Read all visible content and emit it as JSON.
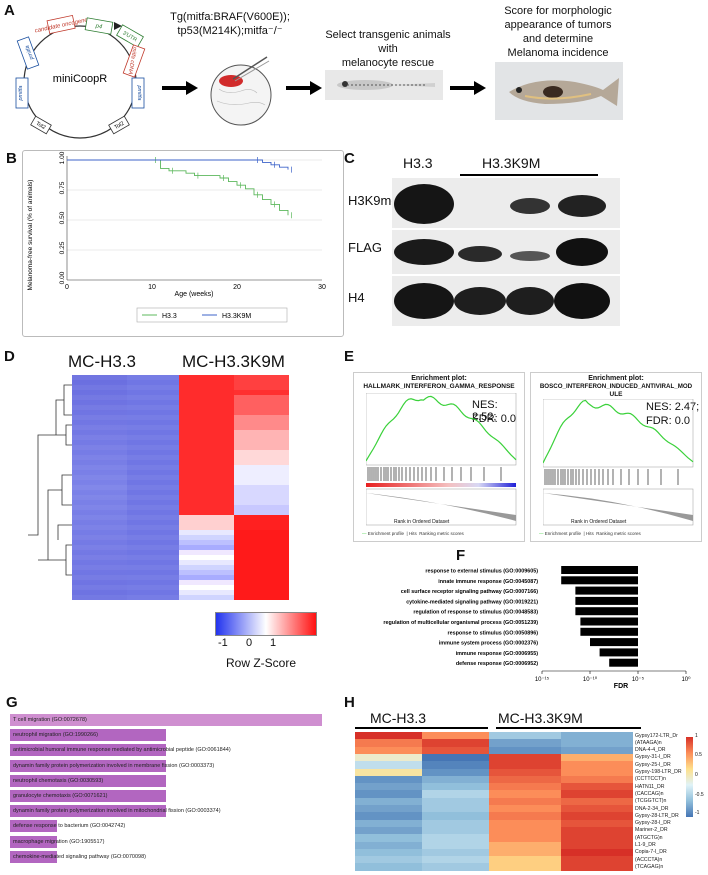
{
  "panels": {
    "A": "A",
    "B": "B",
    "C": "C",
    "D": "D",
    "E": "E",
    "F": "F",
    "G": "G",
    "H": "H"
  },
  "panelA": {
    "plasmid_name": "miniCoopR",
    "plasmid_labels": [
      "p4",
      "3'UTR",
      "pmitfa",
      "mitfa cDNA",
      "candidate oncogene",
      "pmitfa",
      "Tol2",
      "Tol2"
    ],
    "step1": "Tg(mitfa:BRAF(V600E));\ntp53(M214K);mitfa⁻/⁻",
    "step2": "Select transgenic animals with\nmelanocyte rescue",
    "step3": "Score for morphologic\nappearance of tumors\nand determine\nMelanoma incidence"
  },
  "panelB_chart": {
    "ylabel": "Melanoma-free survival (% of animals)",
    "xlabel": "Age (weeks)",
    "yticks": [
      "0.00",
      "0.25",
      "0.50",
      "0.75",
      "1.00"
    ],
    "xticks": [
      "0",
      "10",
      "20",
      "30"
    ],
    "legend": [
      "H3.3",
      "H3.3K9M"
    ]
  },
  "panelC": {
    "top_labels": [
      "H3.3",
      "H3.3K9M"
    ],
    "rows": [
      "H3K9me3",
      "FLAG",
      "H4"
    ]
  },
  "panelD": {
    "col_labels": [
      "MC-H3.3",
      "MC-H3.3K9M"
    ],
    "scale_ticks": [
      "-1",
      "0",
      "1"
    ],
    "scale_title": "Row Z-Score"
  },
  "panelE": {
    "plots": [
      {
        "title1": "Enrichment plot:",
        "title2": "HALLMARK_INTERFERON_GAMMA_RESPONSE",
        "nes": "NES: 2.52;",
        "fdr": "FDR: 0.0"
      },
      {
        "title1": "Enrichment plot:",
        "title2": "BOSCO_INTERFERON_INDUCED_ANTIVIRAL_MOD",
        "title3": "ULE",
        "nes": "NES: 2.47;",
        "fdr": "FDR: 0.0"
      }
    ],
    "xlabel": "Rank in Ordered Dataset",
    "legend": [
      "Enrichment profile",
      "Hits",
      "Ranking metric scores"
    ]
  },
  "chart_data": [
    {
      "type": "line",
      "panel": "B",
      "ylabel": "Melanoma-free survival (% of animals)",
      "xlabel": "Age (weeks)",
      "xlim": [
        0,
        30
      ],
      "ylim": [
        0,
        1
      ],
      "series": [
        {
          "name": "H3.3",
          "color": "#5cb85c",
          "x": [
            0,
            10,
            11,
            12,
            14,
            15,
            17,
            18,
            19,
            20,
            21,
            22,
            23,
            24,
            25,
            26
          ],
          "y": [
            1.0,
            1.0,
            0.93,
            0.91,
            0.89,
            0.87,
            0.87,
            0.85,
            0.82,
            0.79,
            0.76,
            0.71,
            0.67,
            0.63,
            0.58,
            0.54
          ]
        },
        {
          "name": "H3.3K9M",
          "color": "#3d63c9",
          "x": [
            0,
            22,
            23,
            24,
            25,
            26
          ],
          "y": [
            1.0,
            1.0,
            0.98,
            0.96,
            0.94,
            0.92
          ]
        }
      ]
    },
    {
      "type": "bar",
      "panel": "F",
      "xlabel": "FDR",
      "xscale": "log",
      "xticks": [
        "10⁻¹⁵",
        "10⁻¹⁰",
        "10⁻⁵",
        "10⁰"
      ],
      "categories": [
        "response to external stimulus (GO:0009605)",
        "innate immune response (GO:0045087)",
        "cell surface receptor signaling pathway (GO:0007166)",
        "cytokine-mediated signaling pathway (GO:0019221)",
        "regulation of response to stimulus (GO:0048583)",
        "regulation of multicellular organismal process (GO:0051239)",
        "response to stimulus (GO:0050896)",
        "immune system process (GO:0002376)",
        "immune response (GO:0006955)",
        "defense response (GO:0006952)"
      ],
      "values": [
        1e-13,
        1e-13,
        3e-12,
        3e-12,
        3e-12,
        1e-11,
        1e-11,
        1e-10,
        1e-09,
        1e-08
      ]
    },
    {
      "type": "bar",
      "panel": "G",
      "categories": [
        "T cell migration (GO:0072678)",
        "neutrophil migration (GO:1990266)",
        "antimicrobial humoral immune response mediated by antimicrobial peptide (GO:0061844)",
        "dynamin family protein polymerization involved in membrane fission (GO:0003373)",
        "neutrophil chemotaxis (GO:0030593)",
        "granulocyte chemotaxis (GO:0071621)",
        "dynamin family protein polymerization involved in mitochondrial fission (GO:0003374)",
        "defense response to bacterium (GO:0042742)",
        "macrophage migration (GO:1905517)",
        "chemokine-mediated signaling pathway (GO:0070098)"
      ],
      "values": [
        1.0,
        0.5,
        0.5,
        0.5,
        0.5,
        0.5,
        0.5,
        0.15,
        0.15,
        0.15
      ]
    }
  ],
  "panelH": {
    "col_labels": [
      "MC-H3.3",
      "MC-H3.3K9M"
    ],
    "rows": [
      "Gypsy172-LTR_Dr",
      "(ATAAGA)n",
      "DNA-4-4_DR",
      "Gypsy-31-I_DR",
      "Gypsy-25-I_DR",
      "Gypsy-198-LTR_DR",
      "(CCTTCCT)n",
      "HATN11_DR",
      "(CACCAG)n",
      "(TCGGTCT)n",
      "DNA-2-34_DR",
      "Gypsy-28-LTR_DR",
      "Gypsy-28-I_DR",
      "Mariner-2_DR",
      "(ATGCTG)n",
      "L1-9_DR",
      "Copia-7-I_DR",
      "(ACCCTA)n",
      "(TCAGAG)n"
    ],
    "scale_ticks": [
      "1",
      "0.5",
      "0",
      "-0.5",
      "-1"
    ]
  }
}
